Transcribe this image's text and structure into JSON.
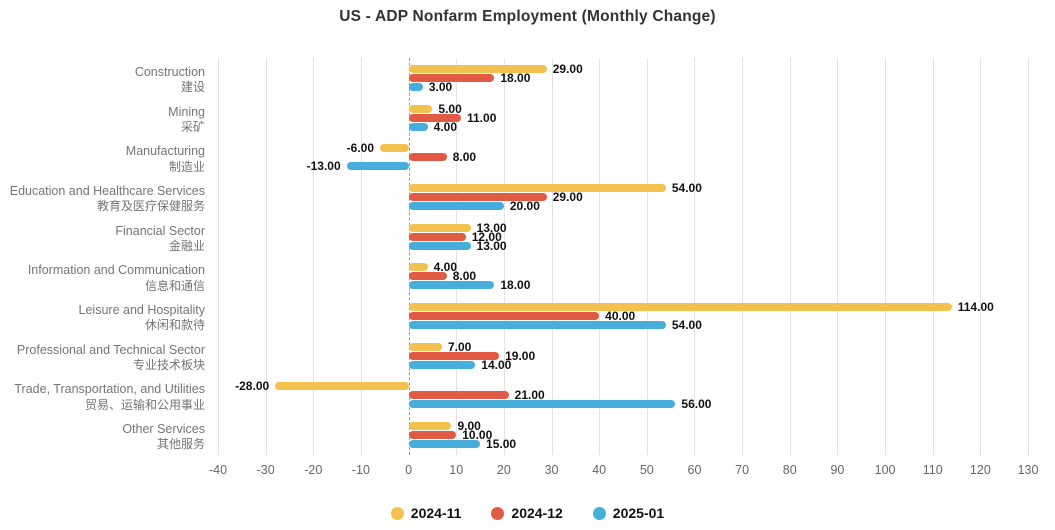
{
  "title": "US - ADP Nonfarm Employment (Monthly Change)",
  "colors": {
    "background": "#ffffff",
    "grid": "#e3e3e3",
    "zero_line": "#999999",
    "tick_text": "#666666",
    "category_text": "#757575",
    "value_text": "#111111",
    "title_text": "#333333"
  },
  "chart_data": {
    "type": "bar",
    "orientation": "horizontal",
    "title": "US - ADP Nonfarm Employment (Monthly Change)",
    "xlabel": "",
    "ylabel": "",
    "xlim": [
      -40,
      130
    ],
    "x_ticks": [
      -40,
      -30,
      -20,
      -10,
      0,
      10,
      20,
      30,
      40,
      50,
      60,
      70,
      80,
      90,
      100,
      110,
      120,
      130
    ],
    "grid": true,
    "zero_line_style": "dashed",
    "value_label_decimals": 2,
    "legend_position": "bottom",
    "categories": [
      {
        "en": "Construction",
        "zh": "建设"
      },
      {
        "en": "Mining",
        "zh": "采矿"
      },
      {
        "en": "Manufacturing",
        "zh": "制造业"
      },
      {
        "en": "Education and Healthcare Services",
        "zh": "教育及医疗保健服务"
      },
      {
        "en": "Financial Sector",
        "zh": "金融业"
      },
      {
        "en": "Information and Communication",
        "zh": "信息和通信"
      },
      {
        "en": "Leisure and Hospitality",
        "zh": "休闲和款待"
      },
      {
        "en": "Professional and Technical Sector",
        "zh": "专业技术板块"
      },
      {
        "en": "Trade, Transportation, and Utilities",
        "zh": "贸易、运输和公用事业"
      },
      {
        "en": "Other Services",
        "zh": "其他服务"
      }
    ],
    "series": [
      {
        "name": "2024-11",
        "color": "#F2C14E",
        "values": [
          29,
          5,
          -6,
          54,
          13,
          4,
          114,
          7,
          -28,
          9
        ]
      },
      {
        "name": "2024-12",
        "color": "#E05A44",
        "values": [
          18,
          11,
          8,
          29,
          12,
          8,
          40,
          19,
          21,
          10
        ]
      },
      {
        "name": "2025-01",
        "color": "#45AEDB",
        "values": [
          3,
          4,
          -13,
          20,
          13,
          18,
          54,
          14,
          56,
          15
        ]
      }
    ]
  }
}
